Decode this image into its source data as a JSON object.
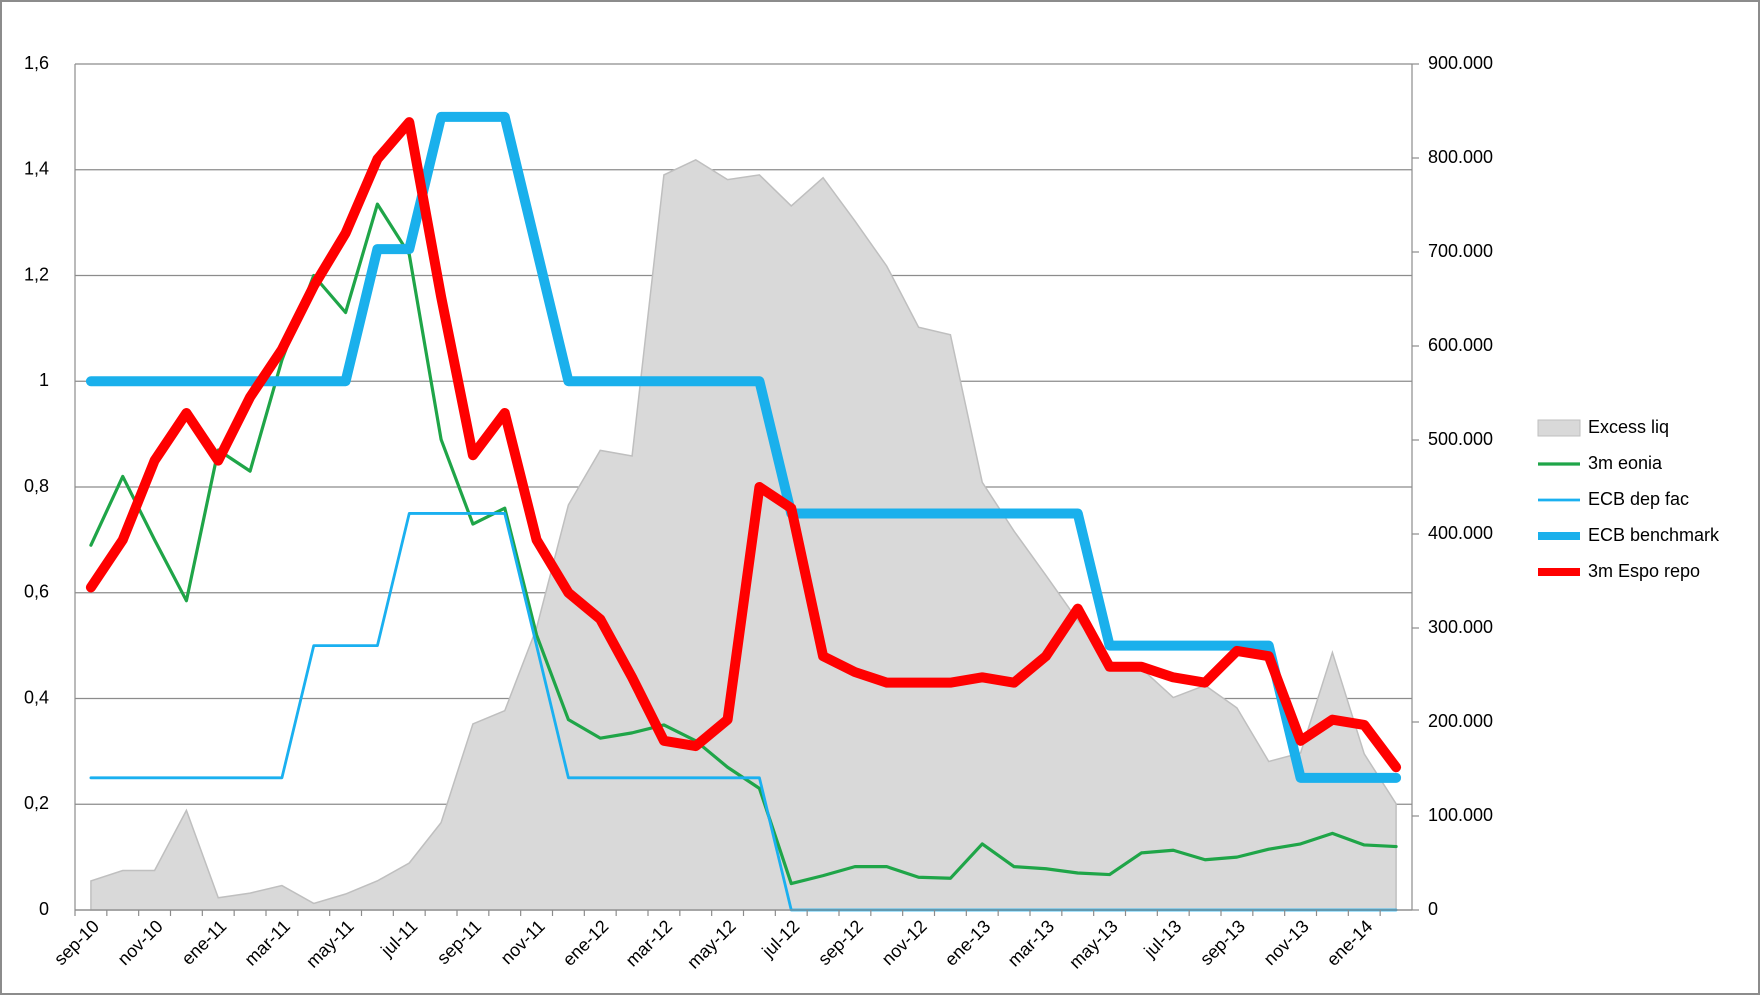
{
  "chart_data": {
    "type": "line",
    "categories": [
      "sep-10",
      null,
      "nov-10",
      null,
      "ene-11",
      null,
      "mar-11",
      null,
      "may-11",
      null,
      "jul-11",
      null,
      "sep-11",
      null,
      "nov-11",
      null,
      "ene-12",
      null,
      "mar-12",
      null,
      "may-12",
      null,
      "jul-12",
      null,
      "sep-12",
      null,
      "nov-12",
      null,
      "ene-13",
      null,
      "mar-13",
      null,
      "may-13",
      null,
      "jul-13",
      null,
      "sep-13",
      null,
      "nov-13",
      null,
      "ene-14",
      null
    ],
    "ylim": [
      0,
      1.6
    ],
    "yticks": [
      0,
      {
        "value": 0.2,
        "label": "0,2"
      },
      {
        "value": 0.4,
        "label": "0,4"
      },
      {
        "value": 0.6,
        "label": "0,6"
      },
      {
        "value": 0.8,
        "label": "0,8"
      },
      1,
      {
        "value": 1.2,
        "label": "1,2"
      },
      {
        "value": 1.4,
        "label": "1,4"
      },
      {
        "value": 1.6,
        "label": "1,6"
      }
    ],
    "y2lim": [
      0,
      900000
    ],
    "y2ticks": [
      0,
      {
        "value": 100000,
        "label": "100.000"
      },
      {
        "value": 200000,
        "label": "200.000"
      },
      {
        "value": 300000,
        "label": "300.000"
      },
      {
        "value": 400000,
        "label": "400.000"
      },
      {
        "value": 500000,
        "label": "500.000"
      },
      {
        "value": 600000,
        "label": "600.000"
      },
      {
        "value": 700000,
        "label": "700.000"
      },
      {
        "value": 800000,
        "label": "800.000"
      },
      {
        "value": 900000,
        "label": "900.000"
      }
    ],
    "grid": true,
    "legend": "right",
    "series": [
      {
        "name": "Excess liq",
        "type": "area",
        "axis": "y2",
        "color": "#d9d9d9",
        "values": [
          31000,
          42000,
          42000,
          106000,
          13000,
          18000,
          26000,
          7000,
          17000,
          31000,
          50000,
          93000,
          198000,
          212000,
          300000,
          431000,
          489000,
          483000,
          782000,
          798000,
          777000,
          782000,
          749000,
          779000,
          733000,
          685000,
          620000,
          612000,
          455000,
          403000,
          356000,
          308000,
          264000,
          257000,
          226000,
          239000,
          215000,
          158000,
          167000,
          274000,
          166000,
          113000
        ]
      },
      {
        "name": "3m eonia",
        "type": "line",
        "color": "#1fa548",
        "values": [
          0.69,
          0.82,
          0.7,
          0.585,
          0.87,
          0.83,
          1.04,
          1.2,
          1.13,
          1.335,
          1.24,
          0.89,
          0.73,
          0.76,
          0.52,
          0.36,
          0.325,
          0.335,
          0.35,
          0.32,
          0.27,
          0.23,
          0.05,
          0.065,
          0.082,
          0.082,
          0.062,
          0.06,
          0.125,
          0.082,
          0.078,
          0.07,
          0.067,
          0.108,
          0.113,
          0.095,
          0.1,
          0.115,
          0.125,
          0.145,
          0.123,
          0.12
        ]
      },
      {
        "name": "ECB dep fac",
        "type": "line",
        "color": "#1ab0f0",
        "values": [
          0.25,
          0.25,
          0.25,
          0.25,
          0.25,
          0.25,
          0.25,
          0.5,
          0.5,
          0.5,
          0.75,
          0.75,
          0.75,
          0.75,
          0.5,
          0.25,
          0.25,
          0.25,
          0.25,
          0.25,
          0.25,
          0.25,
          0,
          0,
          0,
          0,
          0,
          0,
          0,
          0,
          0,
          0,
          0,
          0,
          0,
          0,
          0,
          0,
          0,
          0,
          0,
          0
        ]
      },
      {
        "name": "ECB benchmark",
        "type": "line",
        "color": "#1ab0ec",
        "values": [
          1,
          1,
          1,
          1,
          1,
          1,
          1,
          1,
          1,
          1.25,
          1.25,
          1.5,
          1.5,
          1.5,
          1.25,
          1,
          1,
          1,
          1,
          1,
          1,
          1,
          0.75,
          0.75,
          0.75,
          0.75,
          0.75,
          0.75,
          0.75,
          0.75,
          0.75,
          0.75,
          0.5,
          0.5,
          0.5,
          0.5,
          0.5,
          0.5,
          0.25,
          0.25,
          0.25,
          0.25
        ]
      },
      {
        "name": "3m Espo repo",
        "type": "line",
        "color": "#ff0000",
        "values": [
          0.61,
          0.7,
          0.85,
          0.94,
          0.85,
          0.97,
          1.06,
          1.18,
          1.28,
          1.42,
          1.49,
          1.16,
          0.86,
          0.94,
          0.7,
          0.6,
          0.55,
          0.44,
          0.32,
          0.31,
          0.36,
          0.8,
          0.76,
          0.48,
          0.45,
          0.43,
          0.43,
          0.43,
          0.44,
          0.43,
          0.48,
          0.57,
          0.46,
          0.46,
          0.44,
          0.43,
          0.49,
          0.48,
          0.32,
          0.36,
          0.35,
          0.27
        ]
      }
    ]
  }
}
